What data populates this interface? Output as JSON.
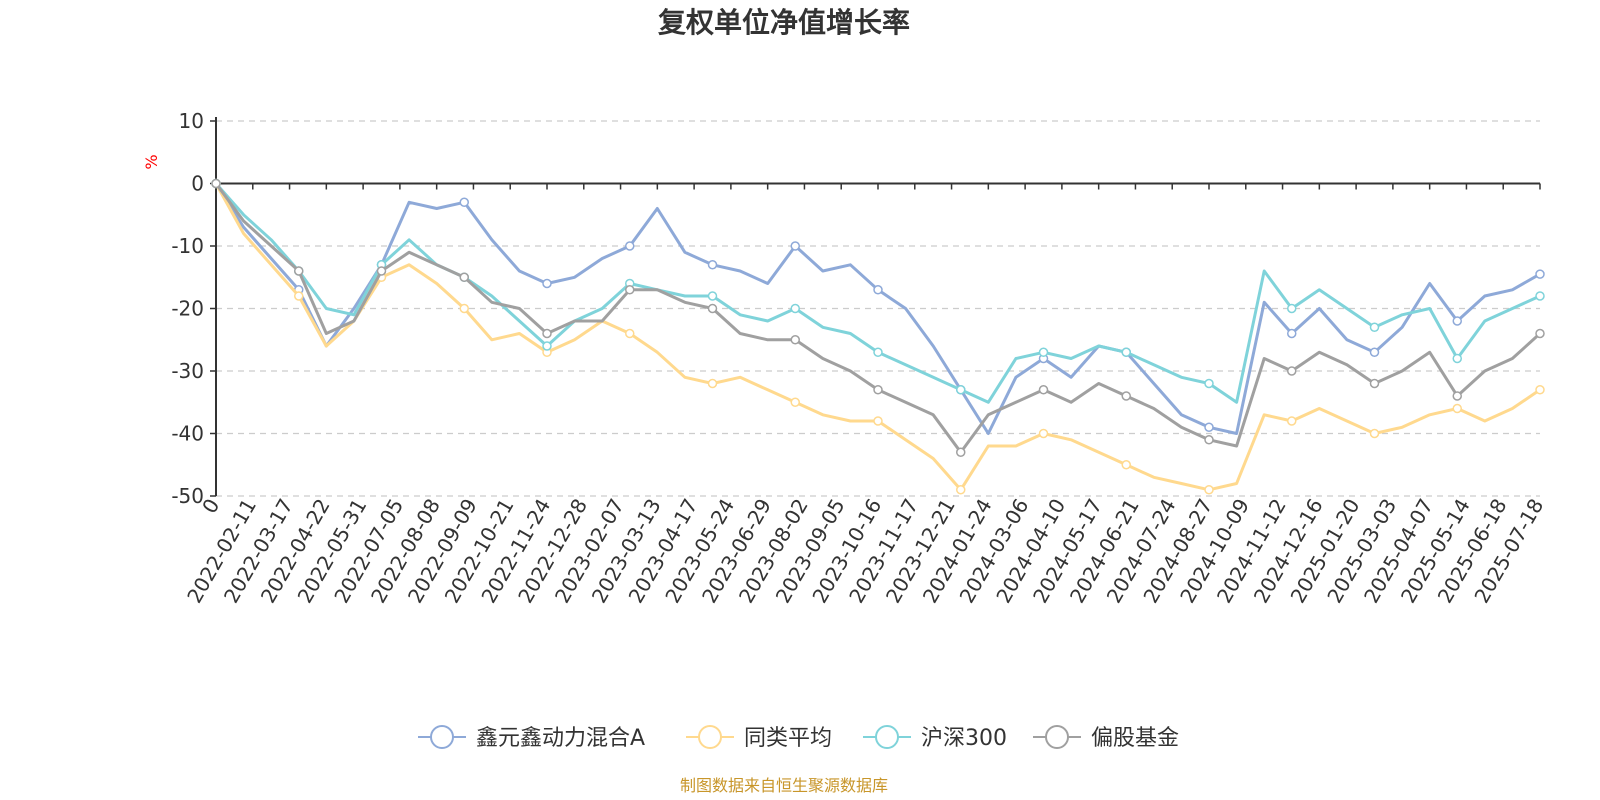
{
  "chart_data": {
    "type": "line",
    "title": "复权单位净值增长率",
    "y_unit": "%",
    "ylim": [
      -50,
      10
    ],
    "y_ticks": [
      "10",
      "0",
      "-10",
      "-20",
      "-30",
      "-40",
      "-50"
    ],
    "grid": "horizontal dashed",
    "legend_position": "bottom-center",
    "x_tick_labels": [
      "0",
      "2022-02-11",
      "2022-03-17",
      "2022-04-22",
      "2022-05-31",
      "2022-07-05",
      "2022-08-08",
      "2022-09-09",
      "2022-10-21",
      "2022-11-24",
      "2022-12-28",
      "2023-02-07",
      "2023-03-13",
      "2023-04-17",
      "2023-05-24",
      "2023-06-29",
      "2023-08-02",
      "2023-09-05",
      "2023-10-16",
      "2023-11-17",
      "2023-12-21",
      "2024-01-24",
      "2024-03-06",
      "2024-04-10",
      "2024-05-17",
      "2024-06-21",
      "2024-07-24",
      "2024-08-27",
      "2024-10-09",
      "2024-11-12",
      "2024-12-16",
      "2025-01-20",
      "2025-03-03",
      "2025-04-07",
      "2025-05-14",
      "2025-06-18",
      "2025-07-18"
    ],
    "series": [
      {
        "name": "鑫元鑫动力混合A",
        "color": "#8ea9d8",
        "values": [
          0,
          -7,
          -12,
          -17,
          -26,
          -20,
          -13,
          -3,
          -4,
          -3,
          -9,
          -14,
          -16,
          -15,
          -12,
          -10,
          -4,
          -11,
          -13,
          -14,
          -16,
          -10,
          -14,
          -13,
          -17,
          -20,
          -26,
          -33,
          -40,
          -31,
          -28,
          -31,
          -26,
          -27,
          -32,
          -37,
          -39,
          -40,
          -19,
          -24,
          -20,
          -25,
          -27,
          -23,
          -16,
          -22,
          -18,
          -17,
          -14.5
        ]
      },
      {
        "name": "同类平均",
        "color": "#ffd98e",
        "values": [
          0,
          -8,
          -13,
          -18,
          -26,
          -22,
          -15,
          -13,
          -16,
          -20,
          -25,
          -24,
          -27,
          -25,
          -22,
          -24,
          -27,
          -31,
          -32,
          -31,
          -33,
          -35,
          -37,
          -38,
          -38,
          -41,
          -44,
          -49,
          -42,
          -42,
          -40,
          -41,
          -43,
          -45,
          -47,
          -48,
          -49,
          -48,
          -37,
          -38,
          -36,
          -38,
          -40,
          -39,
          -37,
          -36,
          -38,
          -36,
          -33
        ]
      },
      {
        "name": "沪深300",
        "color": "#7fd3da",
        "values": [
          0,
          -5,
          -9,
          -14,
          -20,
          -21,
          -13,
          -9,
          -13,
          -15,
          -18,
          -22,
          -26,
          -22,
          -20,
          -16,
          -17,
          -18,
          -18,
          -21,
          -22,
          -20,
          -23,
          -24,
          -27,
          -29,
          -31,
          -33,
          -35,
          -28,
          -27,
          -28,
          -26,
          -27,
          -29,
          -31,
          -32,
          -35,
          -14,
          -20,
          -17,
          -20,
          -23,
          -21,
          -20,
          -28,
          -22,
          -20,
          -18
        ]
      },
      {
        "name": "偏股基金",
        "color": "#a0a0a0",
        "values": [
          0,
          -6,
          -10,
          -14,
          -24,
          -22,
          -14,
          -11,
          -13,
          -15,
          -19,
          -20,
          -24,
          -22,
          -22,
          -17,
          -17,
          -19,
          -20,
          -24,
          -25,
          -25,
          -28,
          -30,
          -33,
          -35,
          -37,
          -43,
          -37,
          -35,
          -33,
          -35,
          -32,
          -34,
          -36,
          -39,
          -41,
          -42,
          -28,
          -30,
          -27,
          -29,
          -32,
          -30,
          -27,
          -34,
          -30,
          -28,
          -24
        ]
      }
    ]
  },
  "legend": {
    "items": [
      "鑫元鑫动力混合A",
      "同类平均",
      "沪深300",
      "偏股基金"
    ]
  },
  "source": "制图数据来自恒生聚源数据库"
}
